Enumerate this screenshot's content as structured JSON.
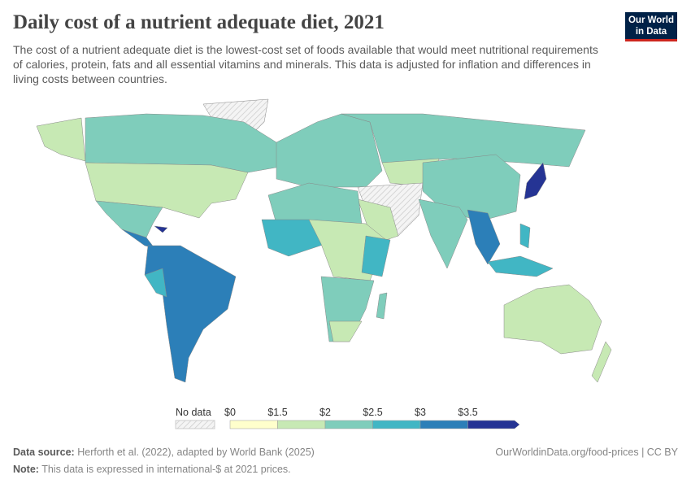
{
  "header": {
    "title": "Daily cost of a nutrient adequate diet, 2021",
    "subtitle": "The cost of a nutrient adequate diet is the lowest-cost set of foods available that would meet nutritional requirements of calories, protein, fats and all essential vitamins and minerals. This data is adjusted for inflation and differences in living costs between countries.",
    "logo": "Our World in Data"
  },
  "legend": {
    "no_data": "No data",
    "ticks": [
      "$0",
      "$1.5",
      "$2",
      "$2.5",
      "$3",
      "$3.5"
    ],
    "colors": [
      "#ffffcc",
      "#c7e9b4",
      "#7fcdbb",
      "#41b6c4",
      "#2c7fb8",
      "#253494"
    ],
    "no_data_color": "hatched"
  },
  "footer": {
    "source_label": "Data source:",
    "source": "Herforth et al. (2022), adapted by World Bank (2025)",
    "link": "OurWorldinData.org/food-prices | CC BY",
    "note_label": "Note:",
    "note": "This data is expressed in international-$ at 2021 prices."
  }
}
